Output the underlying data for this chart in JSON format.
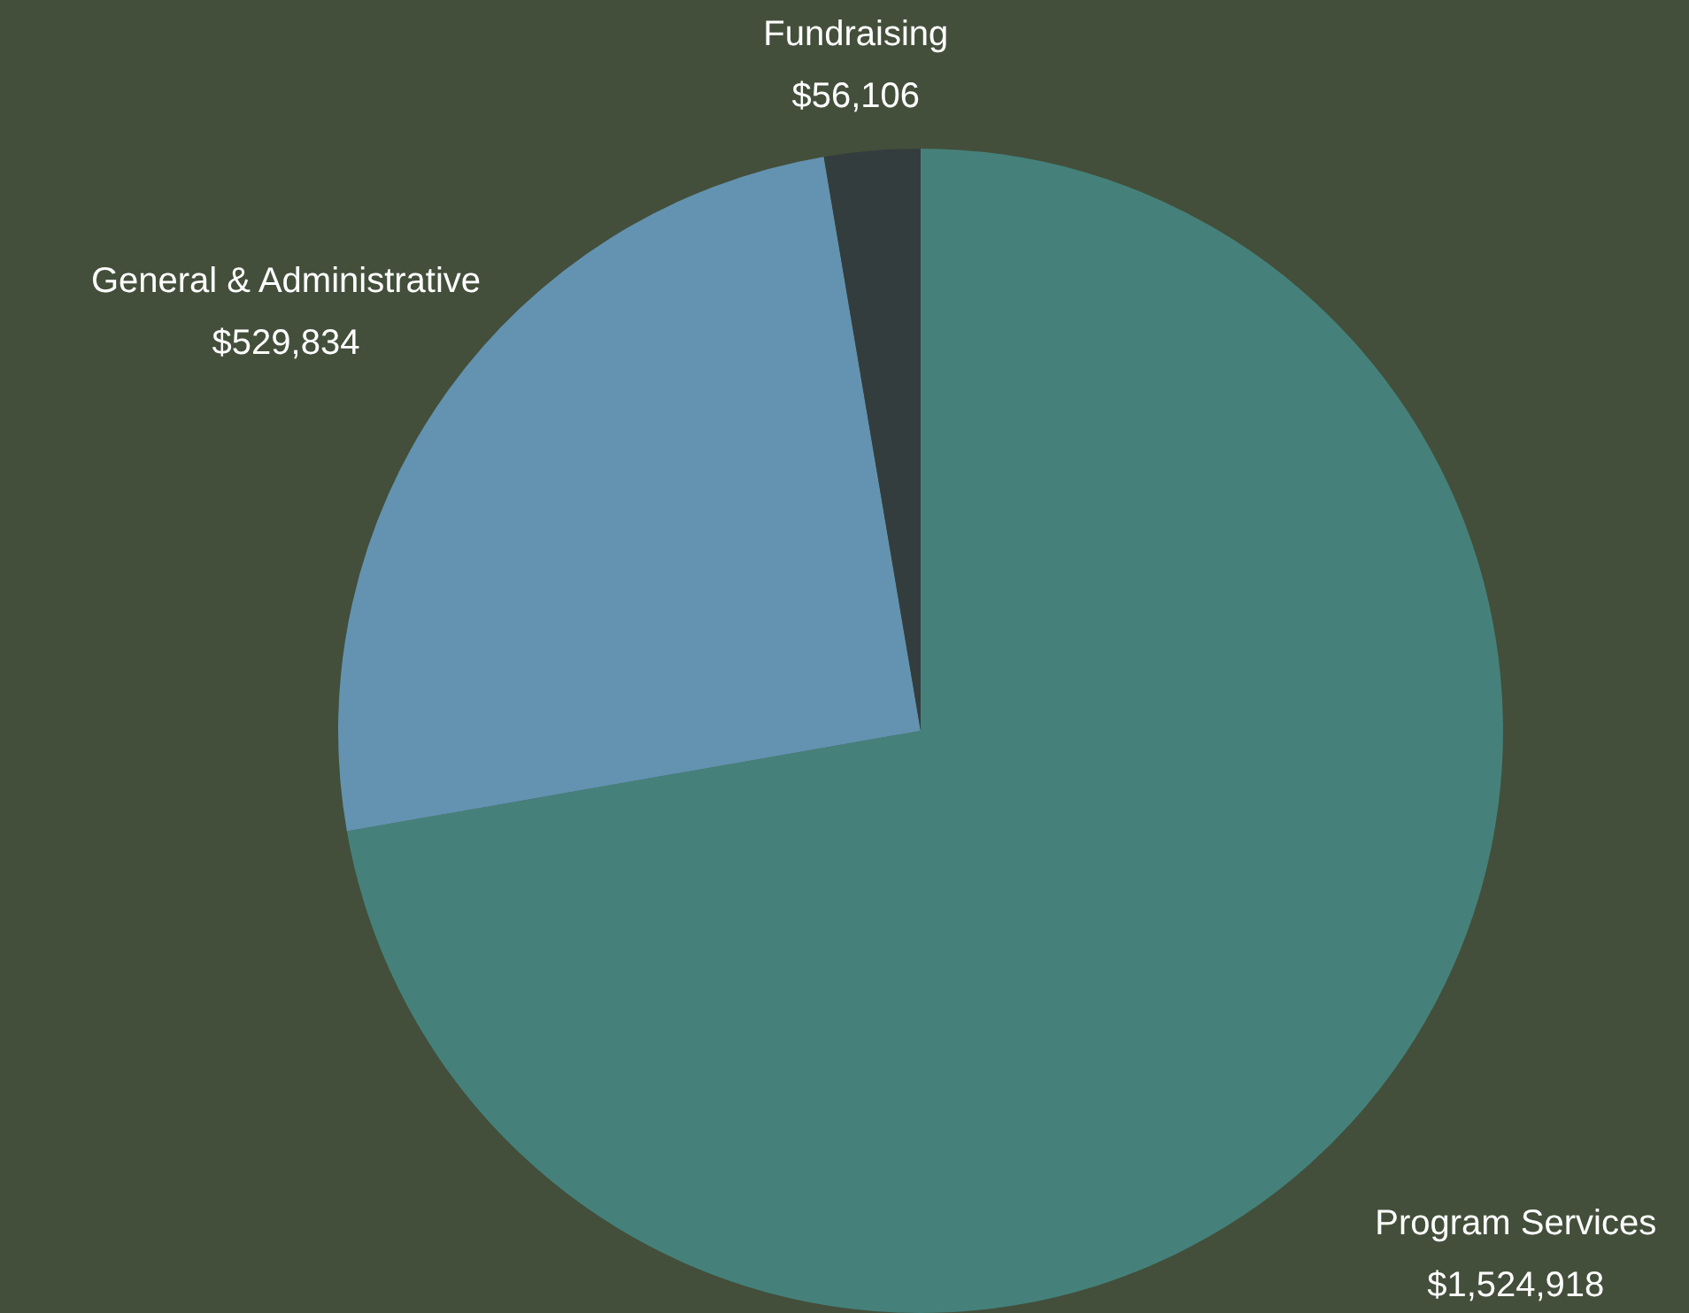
{
  "chart_data": {
    "type": "pie",
    "categories": [
      "Program Services",
      "General & Administrative",
      "Fundraising"
    ],
    "values": [
      1524918,
      529834,
      56106
    ],
    "colors": [
      "#45817a",
      "#6393b0",
      "#343d3e"
    ],
    "value_labels": [
      "$1,524,918",
      "$529,834",
      "$56,106"
    ],
    "legend": false
  }
}
